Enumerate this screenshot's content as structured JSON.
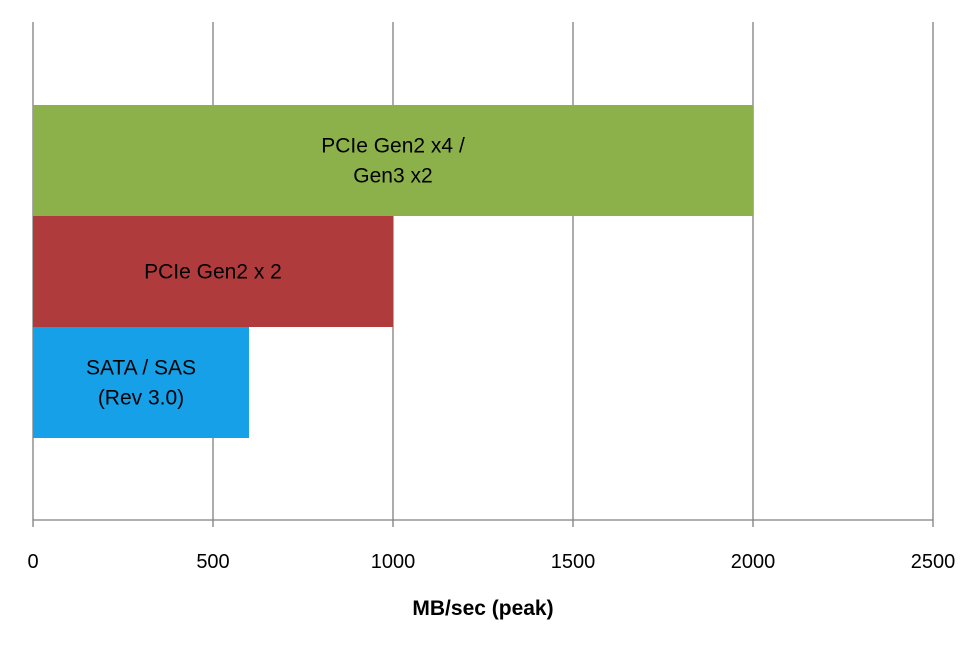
{
  "chart_data": {
    "type": "bar",
    "orientation": "horizontal",
    "xlabel": "MB/sec (peak)",
    "ylabel": "",
    "xlim": [
      0,
      2500
    ],
    "x_ticks": [
      0,
      500,
      1000,
      1500,
      2000,
      2500
    ],
    "x_tick_labels": [
      "0",
      "500",
      "1000",
      "1500",
      "2000",
      "2500"
    ],
    "grid": "vertical",
    "legend": "none",
    "bars": [
      {
        "label_lines": [
          "PCIe Gen2 x4 /",
          "Gen3 x2"
        ],
        "value": 2000,
        "color": "#8db14a"
      },
      {
        "label_lines": [
          "PCIe Gen2 x 2"
        ],
        "value": 1000,
        "color": "#b03b3d"
      },
      {
        "label_lines": [
          "SATA / SAS",
          "(Rev 3.0)"
        ],
        "value": 600,
        "color": "#16a0e8"
      }
    ],
    "colors": {
      "grid": "#808080",
      "axis": "#808080"
    }
  }
}
